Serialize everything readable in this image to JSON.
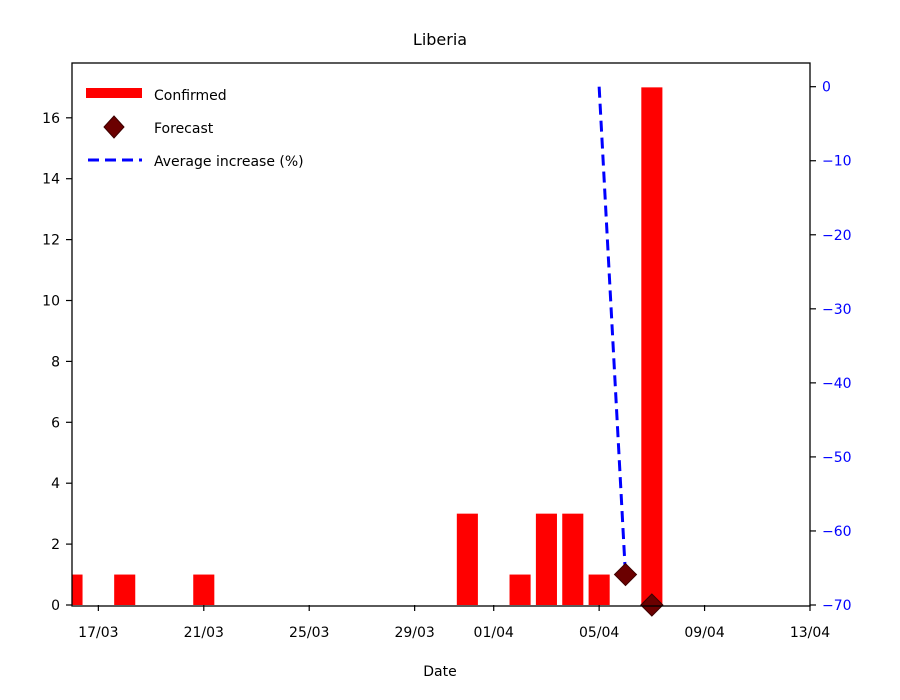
{
  "chart_data": {
    "type": "bar",
    "title": "Liberia",
    "xlabel": "Date",
    "ylabel": "",
    "y2label": "",
    "x_dates": [
      "2020-03-16",
      "2020-03-17",
      "2020-03-18",
      "2020-03-19",
      "2020-03-20",
      "2020-03-21",
      "2020-03-22",
      "2020-03-23",
      "2020-03-24",
      "2020-03-25",
      "2020-03-26",
      "2020-03-27",
      "2020-03-28",
      "2020-03-29",
      "2020-03-30",
      "2020-03-31",
      "2020-04-01",
      "2020-04-02",
      "2020-04-03",
      "2020-04-04",
      "2020-04-05",
      "2020-04-06",
      "2020-04-07",
      "2020-04-08"
    ],
    "xlim": [
      "2020-03-16",
      "2020-04-13"
    ],
    "ylim": [
      0,
      17.8
    ],
    "y2lim": [
      -70,
      3.2
    ],
    "xticks": [
      {
        "date": "2020-03-17",
        "label": "17/03"
      },
      {
        "date": "2020-03-21",
        "label": "21/03"
      },
      {
        "date": "2020-03-25",
        "label": "25/03"
      },
      {
        "date": "2020-03-29",
        "label": "29/03"
      },
      {
        "date": "2020-04-01",
        "label": "01/04"
      },
      {
        "date": "2020-04-05",
        "label": "05/04"
      },
      {
        "date": "2020-04-09",
        "label": "09/04"
      },
      {
        "date": "2020-04-13",
        "label": "13/04"
      }
    ],
    "yticks": [
      0,
      2,
      4,
      6,
      8,
      10,
      12,
      14,
      16
    ],
    "y2ticks": [
      0,
      -10,
      -20,
      -30,
      -40,
      -50,
      -60,
      -70
    ],
    "y2_color": "#0000ff",
    "series": [
      {
        "name": "Confirmed",
        "type": "bar",
        "axis": "left",
        "color": "#ff0000",
        "points": [
          {
            "x": "2020-03-16",
            "y": 1
          },
          {
            "x": "2020-03-18",
            "y": 1
          },
          {
            "x": "2020-03-21",
            "y": 1
          },
          {
            "x": "2020-03-31",
            "y": 3
          },
          {
            "x": "2020-04-02",
            "y": 1
          },
          {
            "x": "2020-04-03",
            "y": 3
          },
          {
            "x": "2020-04-04",
            "y": 3
          },
          {
            "x": "2020-04-05",
            "y": 1
          },
          {
            "x": "2020-04-07",
            "y": 17
          }
        ]
      },
      {
        "name": "Forecast",
        "type": "scatter",
        "axis": "left",
        "marker": "diamond",
        "color": "#6b0000",
        "points": [
          {
            "x": "2020-04-06",
            "y": 1
          },
          {
            "x": "2020-04-07",
            "y": 0
          }
        ]
      },
      {
        "name": "Average increase (%)",
        "type": "line",
        "axis": "right",
        "linestyle": "dashed",
        "color": "#0000ff",
        "points": [
          {
            "x": "2020-04-05",
            "y": 0
          },
          {
            "x": "2020-04-06",
            "y": -66
          }
        ]
      }
    ],
    "legend": {
      "position": "top-left",
      "entries": [
        "Confirmed",
        "Forecast",
        "Average increase (%)"
      ]
    },
    "grid": false
  }
}
